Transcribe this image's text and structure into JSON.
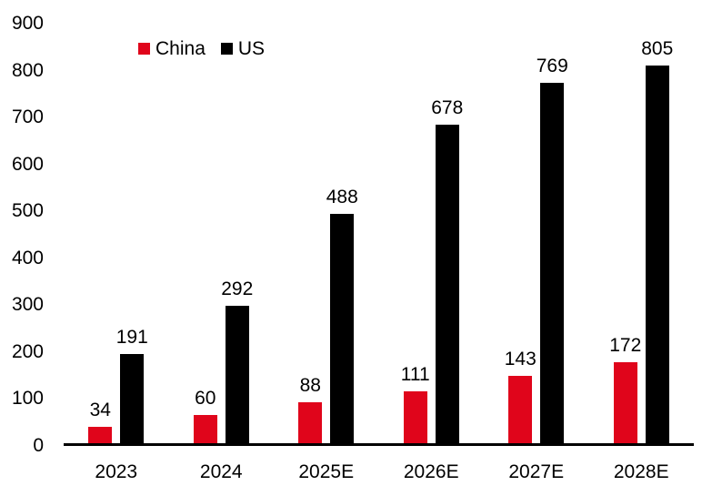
{
  "chart_data": {
    "type": "bar",
    "title": "",
    "xlabel": "",
    "ylabel": "",
    "categories": [
      "2023",
      "2024",
      "2025E",
      "2026E",
      "2027E",
      "2028E"
    ],
    "series": [
      {
        "name": "China",
        "color": "#e0051b",
        "values": [
          34,
          60,
          88,
          111,
          143,
          172
        ]
      },
      {
        "name": "US",
        "color": "#000000",
        "values": [
          191,
          292,
          488,
          678,
          769,
          805
        ]
      }
    ],
    "ylim": [
      0,
      900
    ],
    "yticks": [
      0,
      100,
      200,
      300,
      400,
      500,
      600,
      700,
      800,
      900
    ],
    "grid": false,
    "data_labels": true,
    "legend_position": "top-left"
  },
  "colors": {
    "background": "#ffffff",
    "axis_line": "#000000",
    "text": "#000000",
    "china_red": "#e0051b",
    "us_black": "#000000"
  }
}
